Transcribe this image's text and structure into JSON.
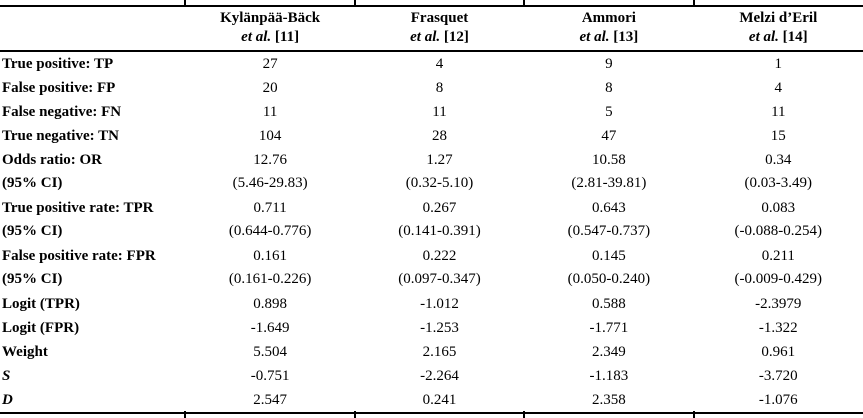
{
  "table": {
    "columns": [
      {
        "name": "Kylänpää-Bäck",
        "etal": "et al.",
        "ref": "[11]"
      },
      {
        "name": "Frasquet",
        "etal": "et al.",
        "ref": "[12]"
      },
      {
        "name": "Ammori",
        "etal": "et al.",
        "ref": "[13]"
      },
      {
        "name": "Melzi d’Eril",
        "etal": "et al.",
        "ref": "[14]"
      }
    ],
    "rows": [
      {
        "label": "True positive: TP",
        "values": [
          "27",
          "4",
          "9",
          "1"
        ]
      },
      {
        "label": "False positive: FP",
        "values": [
          "20",
          "8",
          "8",
          "4"
        ]
      },
      {
        "label": "False negative: FN",
        "values": [
          "11",
          "11",
          "5",
          "11"
        ]
      },
      {
        "label": "True negative: TN",
        "values": [
          "104",
          "28",
          "47",
          "15"
        ]
      },
      {
        "label": "Odds ratio: OR",
        "label2": "(95% CI)",
        "values": [
          "12.76",
          "1.27",
          "10.58",
          "0.34"
        ],
        "ci": [
          "(5.46-29.83)",
          "(0.32-5.10)",
          "(2.81-39.81)",
          "(0.03-3.49)"
        ]
      },
      {
        "label": "True positive rate: TPR",
        "label2": "(95% CI)",
        "values": [
          "0.711",
          "0.267",
          "0.643",
          "0.083"
        ],
        "ci": [
          "(0.644-0.776)",
          "(0.141-0.391)",
          "(0.547-0.737)",
          "(-0.088-0.254)"
        ]
      },
      {
        "label": "False positive rate: FPR",
        "label2": "(95% CI)",
        "values": [
          "0.161",
          "0.222",
          "0.145",
          "0.211"
        ],
        "ci": [
          "(0.161-0.226)",
          "(0.097-0.347)",
          "(0.050-0.240)",
          "(-0.009-0.429)"
        ]
      },
      {
        "label": "Logit (TPR)",
        "values": [
          "0.898",
          "-1.012",
          "0.588",
          "-2.3979"
        ]
      },
      {
        "label": "Logit (FPR)",
        "values": [
          "-1.649",
          "-1.253",
          "-1.771",
          "-1.322"
        ]
      },
      {
        "label": "Weight",
        "values": [
          "5.504",
          "2.165",
          "2.349",
          "0.961"
        ]
      },
      {
        "label": "S",
        "italic": true,
        "values": [
          "-0.751",
          "-2.264",
          "-1.183",
          "-3.720"
        ]
      },
      {
        "label": "D",
        "italic": true,
        "values": [
          "2.547",
          "0.241",
          "2.358",
          "-1.076"
        ]
      }
    ]
  },
  "colors": {
    "text": "#000000",
    "background": "#ffffff",
    "rule": "#000000"
  }
}
